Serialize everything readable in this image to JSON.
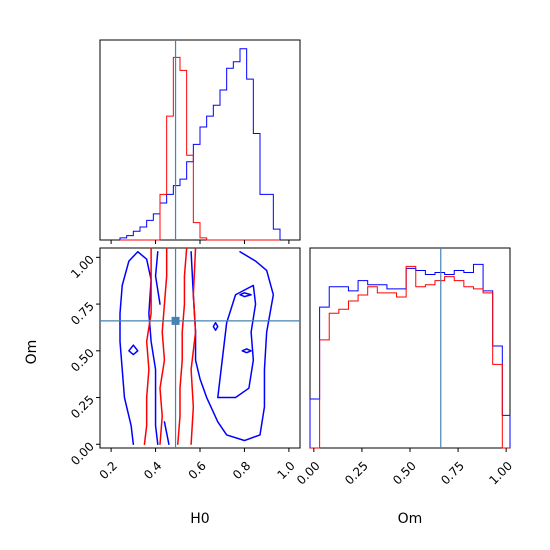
{
  "chart_data": {
    "type": "corner",
    "params": [
      "H0",
      "Om"
    ],
    "truths": {
      "H0": 0.49,
      "Om": 0.66
    },
    "colors": {
      "blue": "#0000ff",
      "red": "#ff0000",
      "truth": "#4682b4"
    },
    "series": [
      {
        "color": "blue"
      },
      {
        "color": "red"
      }
    ],
    "h0_hist": {
      "xlim": [
        0.15,
        1.05
      ],
      "bin_edges": [
        0.24,
        0.27,
        0.3,
        0.33,
        0.36,
        0.39,
        0.42,
        0.45,
        0.48,
        0.51,
        0.54,
        0.57,
        0.6,
        0.63,
        0.66,
        0.69,
        0.72,
        0.75,
        0.78,
        0.81,
        0.84,
        0.87,
        0.9,
        0.93,
        0.96
      ],
      "blue": [
        0.01,
        0.02,
        0.04,
        0.06,
        0.09,
        0.12,
        0.17,
        0.21,
        0.25,
        0.28,
        0.36,
        0.44,
        0.52,
        0.57,
        0.62,
        0.69,
        0.79,
        0.82,
        0.88,
        0.74,
        0.49,
        0.21,
        0.21,
        0.05
      ],
      "red": [
        0,
        0,
        0,
        0,
        0,
        0,
        0.21,
        0.57,
        0.84,
        0.78,
        0.39,
        0.08,
        0.01,
        0,
        0,
        0,
        0,
        0,
        0,
        0,
        0,
        0,
        0,
        0
      ]
    },
    "om_hist": {
      "xlim": [
        -0.02,
        1.02
      ],
      "xticks": [
        "0.00",
        "0.25",
        "0.50",
        "0.75",
        "1.00"
      ],
      "bin_edges": [
        -0.02,
        0.03,
        0.08,
        0.13,
        0.18,
        0.23,
        0.28,
        0.33,
        0.38,
        0.43,
        0.48,
        0.53,
        0.58,
        0.63,
        0.68,
        0.73,
        0.78,
        0.83,
        0.88,
        0.93,
        0.98,
        1.02
      ],
      "blue": [
        0.24,
        0.69,
        0.79,
        0.79,
        0.77,
        0.82,
        0.8,
        0.8,
        0.78,
        0.78,
        0.88,
        0.87,
        0.85,
        0.86,
        0.85,
        0.87,
        0.86,
        0.9,
        0.77,
        0.5,
        0.16
      ],
      "red": [
        0.0,
        0.53,
        0.66,
        0.68,
        0.72,
        0.75,
        0.79,
        0.76,
        0.76,
        0.74,
        0.89,
        0.79,
        0.8,
        0.82,
        0.84,
        0.82,
        0.79,
        0.78,
        0.76,
        0.41,
        0.0
      ]
    },
    "joint": {
      "xlim": [
        0.15,
        1.05
      ],
      "ylim": [
        -0.02,
        1.05
      ],
      "xticks": [
        "0.2",
        "0.4",
        "0.6",
        "0.8",
        "1.0"
      ],
      "yticks": [
        "0.00",
        "0.25",
        "0.50",
        "0.75",
        "1.00"
      ],
      "contours": [
        {
          "series": "blue",
          "points": [
            [
              0.3,
              0.0
            ],
            [
              0.29,
              0.1
            ],
            [
              0.26,
              0.25
            ],
            [
              0.25,
              0.4
            ],
            [
              0.24,
              0.55
            ],
            [
              0.24,
              0.7
            ],
            [
              0.25,
              0.85
            ],
            [
              0.28,
              0.98
            ],
            [
              0.32,
              1.03
            ],
            [
              0.36,
              0.99
            ],
            [
              0.38,
              0.88
            ],
            [
              0.37,
              0.7
            ],
            [
              0.38,
              0.55
            ],
            [
              0.4,
              0.4
            ],
            [
              0.4,
              0.25
            ],
            [
              0.4,
              0.1
            ],
            [
              0.41,
              0.0
            ]
          ]
        },
        {
          "series": "blue",
          "points": [
            [
              0.41,
              1.03
            ],
            [
              0.4,
              0.9
            ],
            [
              0.42,
              0.75
            ]
          ]
        },
        {
          "series": "blue",
          "points": [
            [
              0.56,
              1.03
            ],
            [
              0.57,
              0.8
            ],
            [
              0.58,
              0.6
            ],
            [
              0.58,
              0.45
            ],
            [
              0.6,
              0.35
            ],
            [
              0.63,
              0.25
            ],
            [
              0.68,
              0.12
            ],
            [
              0.72,
              0.05
            ],
            [
              0.8,
              0.02
            ],
            [
              0.87,
              0.05
            ],
            [
              0.89,
              0.2
            ],
            [
              0.89,
              0.4
            ],
            [
              0.9,
              0.6
            ],
            [
              0.93,
              0.8
            ],
            [
              0.9,
              0.93
            ],
            [
              0.85,
              0.98
            ],
            [
              0.78,
              1.03
            ]
          ]
        },
        {
          "series": "blue",
          "points": [
            [
              0.68,
              0.25
            ],
            [
              0.7,
              0.45
            ],
            [
              0.72,
              0.65
            ],
            [
              0.76,
              0.8
            ],
            [
              0.84,
              0.85
            ],
            [
              0.85,
              0.75
            ],
            [
              0.83,
              0.6
            ],
            [
              0.84,
              0.45
            ],
            [
              0.82,
              0.3
            ],
            [
              0.76,
              0.25
            ],
            [
              0.68,
              0.25
            ]
          ]
        },
        {
          "series": "blue",
          "points": [
            [
              0.3,
              0.53
            ],
            [
              0.32,
              0.5
            ],
            [
              0.3,
              0.48
            ],
            [
              0.28,
              0.5
            ],
            [
              0.3,
              0.53
            ]
          ]
        },
        {
          "series": "blue",
          "points": [
            [
              0.67,
              0.65
            ],
            [
              0.68,
              0.63
            ],
            [
              0.67,
              0.61
            ],
            [
              0.66,
              0.63
            ],
            [
              0.67,
              0.65
            ]
          ]
        },
        {
          "series": "blue",
          "points": [
            [
              0.8,
              0.81
            ],
            [
              0.83,
              0.8
            ],
            [
              0.8,
              0.79
            ],
            [
              0.78,
              0.8
            ],
            [
              0.8,
              0.81
            ]
          ]
        },
        {
          "series": "blue",
          "points": [
            [
              0.81,
              0.51
            ],
            [
              0.83,
              0.5
            ],
            [
              0.81,
              0.49
            ],
            [
              0.79,
              0.5
            ],
            [
              0.81,
              0.51
            ]
          ]
        },
        {
          "series": "blue",
          "points": [
            [
              0.44,
              0.12
            ],
            [
              0.45,
              0.06
            ],
            [
              0.46,
              0.0
            ]
          ]
        },
        {
          "series": "red",
          "points": [
            [
              0.35,
              0.0
            ],
            [
              0.36,
              0.1
            ],
            [
              0.36,
              0.25
            ],
            [
              0.37,
              0.4
            ],
            [
              0.36,
              0.55
            ],
            [
              0.38,
              0.7
            ],
            [
              0.38,
              0.85
            ],
            [
              0.38,
              1.05
            ]
          ]
        },
        {
          "series": "red",
          "points": [
            [
              0.42,
              0.0
            ],
            [
              0.43,
              0.15
            ],
            [
              0.42,
              0.3
            ],
            [
              0.44,
              0.45
            ],
            [
              0.43,
              0.6
            ],
            [
              0.44,
              0.75
            ],
            [
              0.45,
              0.9
            ],
            [
              0.45,
              1.05
            ]
          ]
        },
        {
          "series": "red",
          "points": [
            [
              0.5,
              0.0
            ],
            [
              0.51,
              0.15
            ],
            [
              0.51,
              0.3
            ],
            [
              0.52,
              0.45
            ],
            [
              0.52,
              0.6
            ],
            [
              0.53,
              0.75
            ],
            [
              0.53,
              0.9
            ],
            [
              0.54,
              1.05
            ]
          ]
        },
        {
          "series": "red",
          "points": [
            [
              0.56,
              0.0
            ],
            [
              0.57,
              0.2
            ],
            [
              0.56,
              0.4
            ],
            [
              0.58,
              0.6
            ],
            [
              0.57,
              0.8
            ],
            [
              0.58,
              1.05
            ]
          ]
        }
      ]
    }
  }
}
